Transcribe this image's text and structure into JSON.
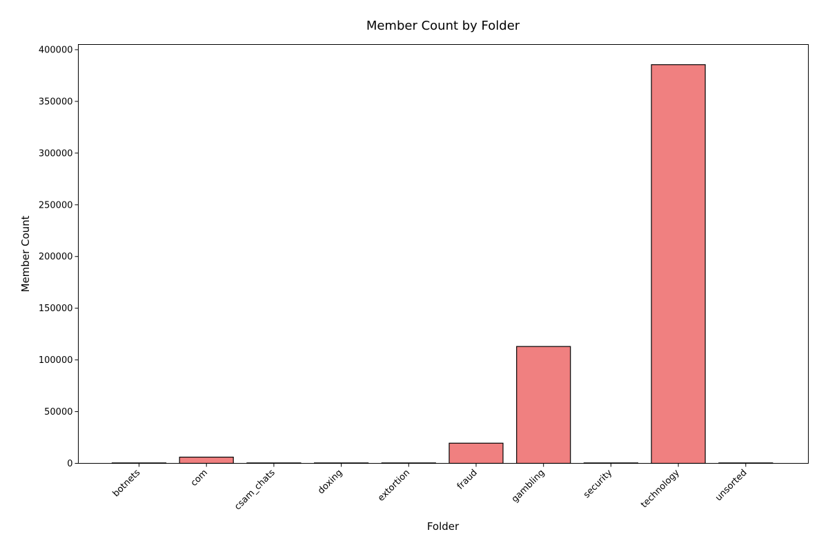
{
  "chart_data": {
    "type": "bar",
    "title": "Member Count by Folder",
    "xlabel": "Folder",
    "ylabel": "Member Count",
    "categories": [
      "botnets",
      "com",
      "csam_chats",
      "doxing",
      "extortion",
      "fraud",
      "gambling",
      "security",
      "technology",
      "unsorted"
    ],
    "values": [
      300,
      6000,
      200,
      150,
      300,
      19500,
      113000,
      200,
      385500,
      100
    ],
    "ylim": [
      0,
      405000
    ],
    "yticks": [
      0,
      50000,
      100000,
      150000,
      200000,
      250000,
      300000,
      350000,
      400000
    ],
    "ytick_labels": [
      "0",
      "50000",
      "100000",
      "150000",
      "200000",
      "250000",
      "300000",
      "350000",
      "400000"
    ],
    "grid": false,
    "legend": "none",
    "bar_color": "#f08080",
    "edge_color": "#000000"
  }
}
